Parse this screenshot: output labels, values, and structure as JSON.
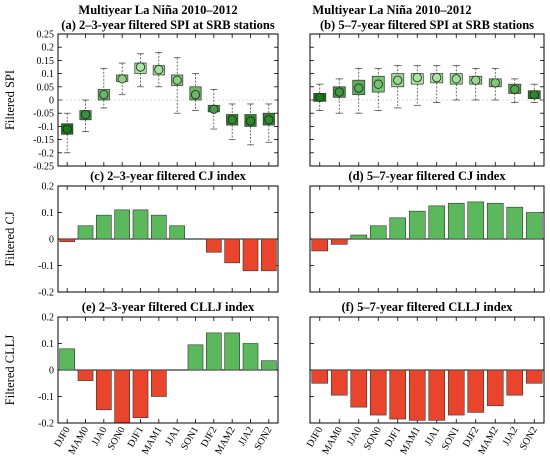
{
  "figure": {
    "suptitle_left": "Multiyear La Niña 2010–2012",
    "suptitle_right": "Multiyear La Niña 2010–2012"
  },
  "colors": {
    "positive_bar": "#5cb85c",
    "negative_bar": "#e8452c",
    "box_light": "#a8e6a0",
    "box_dark": "#1a7a1a",
    "frame": "#000000"
  },
  "categories": [
    "DJF0",
    "MAM0",
    "JJA0",
    "SON0",
    "DJF1",
    "MAM1",
    "JJA1",
    "SON1",
    "DJF2",
    "MAM2",
    "JJA2",
    "SON2"
  ],
  "chart_data": [
    {
      "id": "a",
      "type": "box",
      "title": "(a) 2–3-year filtered SPI at SRB stations",
      "ylabel": "Filtered SPI",
      "ylim": [
        -0.25,
        0.25
      ],
      "yticks": [
        "0.25",
        "0.2",
        "0.15",
        "0.1",
        "0.05",
        "0",
        "-0.05",
        "-0.1",
        "-0.15",
        "-0.2",
        "-0.25"
      ],
      "yticks_values": [
        0.25,
        0.2,
        0.15,
        0.1,
        0.05,
        0,
        -0.05,
        -0.1,
        -0.15,
        -0.2,
        -0.25
      ],
      "boxes": [
        {
          "mean": -0.11,
          "q1": -0.13,
          "q3": -0.09,
          "wlo": -0.2,
          "whi": -0.05
        },
        {
          "mean": -0.055,
          "q1": -0.075,
          "q3": -0.04,
          "wlo": -0.12,
          "whi": 0.0
        },
        {
          "mean": 0.02,
          "q1": 0.0,
          "q3": 0.04,
          "wlo": -0.03,
          "whi": 0.12
        },
        {
          "mean": 0.08,
          "q1": 0.07,
          "q3": 0.095,
          "wlo": 0.02,
          "whi": 0.14
        },
        {
          "mean": 0.125,
          "q1": 0.1,
          "q3": 0.14,
          "wlo": 0.05,
          "whi": 0.175
        },
        {
          "mean": 0.115,
          "q1": 0.095,
          "q3": 0.13,
          "wlo": 0.05,
          "whi": 0.18
        },
        {
          "mean": 0.075,
          "q1": 0.055,
          "q3": 0.095,
          "wlo": -0.05,
          "whi": 0.16
        },
        {
          "mean": 0.02,
          "q1": 0.0,
          "q3": 0.05,
          "wlo": -0.04,
          "whi": 0.1
        },
        {
          "mean": -0.035,
          "q1": -0.045,
          "q3": -0.02,
          "wlo": -0.11,
          "whi": 0.04
        },
        {
          "mean": -0.075,
          "q1": -0.095,
          "q3": -0.055,
          "wlo": -0.15,
          "whi": -0.015
        },
        {
          "mean": -0.08,
          "q1": -0.1,
          "q3": -0.055,
          "wlo": -0.17,
          "whi": -0.015
        },
        {
          "mean": -0.075,
          "q1": -0.095,
          "q3": -0.05,
          "wlo": -0.16,
          "whi": -0.015
        }
      ]
    },
    {
      "id": "b",
      "type": "box",
      "title": "(b) 5–7-year filtered SPI at SRB stations",
      "ylabel": "",
      "ylim": [
        -0.25,
        0.25
      ],
      "yticks": [],
      "yticks_values": [
        0.25,
        0.2,
        0.15,
        0.1,
        0.05,
        0,
        -0.05,
        -0.1,
        -0.15,
        -0.2,
        -0.25
      ],
      "boxes": [
        {
          "mean": 0.01,
          "q1": -0.005,
          "q3": 0.025,
          "wlo": -0.04,
          "whi": 0.06
        },
        {
          "mean": 0.03,
          "q1": 0.01,
          "q3": 0.05,
          "wlo": -0.05,
          "whi": 0.08
        },
        {
          "mean": 0.045,
          "q1": 0.02,
          "q3": 0.075,
          "wlo": -0.05,
          "whi": 0.12
        },
        {
          "mean": 0.06,
          "q1": 0.03,
          "q3": 0.09,
          "wlo": -0.04,
          "whi": 0.12
        },
        {
          "mean": 0.075,
          "q1": 0.05,
          "q3": 0.1,
          "wlo": -0.03,
          "whi": 0.13
        },
        {
          "mean": 0.085,
          "q1": 0.06,
          "q3": 0.1,
          "wlo": -0.02,
          "whi": 0.13
        },
        {
          "mean": 0.085,
          "q1": 0.065,
          "q3": 0.1,
          "wlo": -0.01,
          "whi": 0.13
        },
        {
          "mean": 0.08,
          "q1": 0.06,
          "q3": 0.1,
          "wlo": 0.0,
          "whi": 0.13
        },
        {
          "mean": 0.075,
          "q1": 0.06,
          "q3": 0.09,
          "wlo": 0.0,
          "whi": 0.12
        },
        {
          "mean": 0.065,
          "q1": 0.05,
          "q3": 0.08,
          "wlo": 0.0,
          "whi": 0.12
        },
        {
          "mean": 0.04,
          "q1": 0.025,
          "q3": 0.06,
          "wlo": -0.01,
          "whi": 0.08
        },
        {
          "mean": 0.02,
          "q1": 0.005,
          "q3": 0.035,
          "wlo": -0.01,
          "whi": 0.06
        }
      ]
    },
    {
      "id": "c",
      "type": "bar",
      "title": "(c) 2–3-year filtered CJ index",
      "ylabel": "Filtered CJ",
      "ylim": [
        -0.2,
        0.2
      ],
      "yticks": [
        "0.2",
        "0.1",
        "0",
        "-0.1",
        "-0.2"
      ],
      "yticks_values": [
        0.2,
        0.1,
        0,
        -0.1,
        -0.2
      ],
      "values": [
        -0.01,
        0.05,
        0.09,
        0.11,
        0.11,
        0.09,
        0.05,
        0.0,
        -0.05,
        -0.09,
        -0.12,
        -0.12
      ]
    },
    {
      "id": "d",
      "type": "bar",
      "title": "(d) 5–7-year filtered CJ index",
      "ylabel": "",
      "ylim": [
        -0.2,
        0.2
      ],
      "yticks": [],
      "yticks_values": [
        0.2,
        0.1,
        0,
        -0.1,
        -0.2
      ],
      "values": [
        -0.045,
        -0.02,
        0.015,
        0.05,
        0.08,
        0.105,
        0.125,
        0.135,
        0.14,
        0.135,
        0.12,
        0.1
      ]
    },
    {
      "id": "e",
      "type": "bar",
      "title": "(e) 2–3-year filtered CLLJ index",
      "ylabel": "Filtered CLLJ",
      "ylim": [
        -0.2,
        0.2
      ],
      "yticks": [
        "0.2",
        "0.1",
        "0",
        "-0.1",
        "-0.2"
      ],
      "yticks_values": [
        0.2,
        0.1,
        0,
        -0.1,
        -0.2
      ],
      "values": [
        0.08,
        -0.04,
        -0.15,
        -0.2,
        -0.18,
        -0.1,
        0.0,
        0.095,
        0.14,
        0.14,
        0.1,
        0.035
      ]
    },
    {
      "id": "f",
      "type": "bar",
      "title": "(f) 5–7-year filtered CLLJ index",
      "ylabel": "",
      "ylim": [
        -0.2,
        0.2
      ],
      "yticks": [],
      "yticks_values": [
        0.2,
        0.1,
        0,
        -0.1,
        -0.2
      ],
      "values": [
        -0.05,
        -0.095,
        -0.14,
        -0.17,
        -0.185,
        -0.19,
        -0.19,
        -0.17,
        -0.16,
        -0.135,
        -0.095,
        -0.05
      ]
    }
  ]
}
